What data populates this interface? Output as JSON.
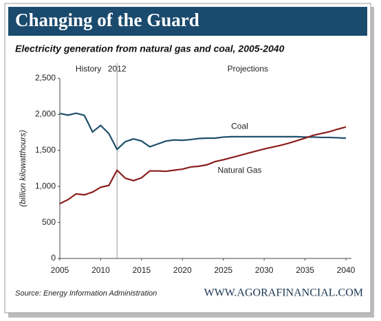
{
  "chart_data": {
    "type": "line",
    "title": "Changing of the Guard",
    "subtitle": "Electricity generation from natural gas and coal, 2005-2040",
    "y_label": "(billion kilowatthours)",
    "source": "Source: Energy Information Administration",
    "website": "WWW.AGORAFINANCIAL.COM",
    "annotations": [
      {
        "text": "History",
        "x": 2008.5
      },
      {
        "text": "2012",
        "x": 2012
      },
      {
        "text": "Projections",
        "x": 2028
      }
    ],
    "x": [
      2005,
      2006,
      2007,
      2008,
      2009,
      2010,
      2011,
      2012,
      2013,
      2014,
      2015,
      2016,
      2017,
      2018,
      2019,
      2020,
      2021,
      2022,
      2023,
      2024,
      2025,
      2026,
      2027,
      2028,
      2029,
      2030,
      2031,
      2032,
      2033,
      2034,
      2035,
      2036,
      2037,
      2038,
      2039,
      2040
    ],
    "series": [
      {
        "name": "Coal",
        "color": "#1d4e6a",
        "label_x": 2027,
        "label_y": 1830,
        "values": [
          2013,
          1990,
          2016,
          1986,
          1756,
          1847,
          1733,
          1514,
          1620,
          1660,
          1630,
          1550,
          1590,
          1630,
          1645,
          1640,
          1650,
          1665,
          1670,
          1670,
          1685,
          1690,
          1690,
          1690,
          1690,
          1690,
          1690,
          1690,
          1690,
          1690,
          1685,
          1685,
          1680,
          1680,
          1675,
          1670
        ]
      },
      {
        "name": "Natural Gas",
        "color": "#8b1c1c",
        "label_x": 2027,
        "label_y": 1220,
        "values": [
          761,
          816,
          897,
          883,
          921,
          988,
          1014,
          1225,
          1115,
          1080,
          1120,
          1215,
          1215,
          1210,
          1225,
          1240,
          1270,
          1280,
          1300,
          1345,
          1370,
          1400,
          1430,
          1460,
          1490,
          1520,
          1545,
          1570,
          1600,
          1635,
          1670,
          1710,
          1735,
          1760,
          1795,
          1825
        ]
      }
    ],
    "xlim": [
      2005,
      2040
    ],
    "xticks": [
      2005,
      2010,
      2015,
      2020,
      2025,
      2030,
      2035,
      2040
    ],
    "ylim": [
      0,
      2500
    ],
    "yticks": [
      0,
      {
        "value": 500,
        "label": "500"
      },
      {
        "value": 1000,
        "label": "1,000"
      },
      {
        "value": 1500,
        "label": "1,500"
      },
      {
        "value": 2000,
        "label": "2,000"
      },
      {
        "value": 2500,
        "label": "2,500"
      }
    ],
    "grid": false
  }
}
